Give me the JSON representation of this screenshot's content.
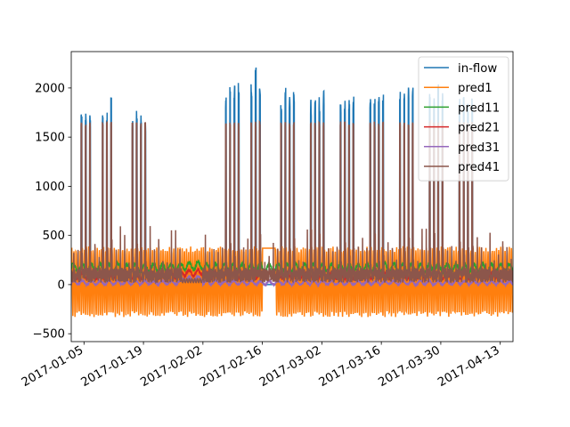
{
  "chart_data": {
    "type": "line",
    "title": "",
    "xlabel": "",
    "ylabel": "",
    "xlim": [
      "2017-01-02",
      "2017-04-16"
    ],
    "ylim": [
      -580,
      2370
    ],
    "x_ticks": [
      "2017-01-05",
      "2017-01-19",
      "2017-02-02",
      "2017-02-16",
      "2017-03-02",
      "2017-03-16",
      "2017-03-30",
      "2017-04-13"
    ],
    "y_ticks": [
      -500,
      0,
      500,
      1000,
      1500,
      2000
    ],
    "grid": false,
    "legend_position": "top-right",
    "x_date_format": "YYYY-MM-DD, rotated labels",
    "series": [
      {
        "name": "in-flow",
        "color": "#1f77b4",
        "line_width": 1.5,
        "description": "daily spikes to ~1700-2250 on business days, 0 otherwise; near-zero from 2017-01-28 to 2017-02-02"
      },
      {
        "name": "pred1",
        "color": "#ff7f0e",
        "line_width": 1.5,
        "description": "oscillates roughly between -330 and 390; flat ~370 from 2017-02-16 to 2017-02-19"
      },
      {
        "name": "pred11",
        "color": "#2ca02c",
        "line_width": 1.5,
        "description": "mostly flat between ~120 and ~250; ~190 around early February"
      },
      {
        "name": "pred21",
        "color": "#d62728",
        "line_width": 1.5,
        "description": "mostly flat between ~50 and ~130"
      },
      {
        "name": "pred31",
        "color": "#9467bd",
        "line_width": 1.5,
        "description": "mostly flat ~0 to ~50"
      },
      {
        "name": "pred41",
        "color": "#8c564b",
        "line_width": 1.5,
        "description": "daily spikes to ~1600-1700 on business days, small bumps to ~600 before weekends"
      }
    ],
    "peaks": {
      "in-flow": [
        [
          "2017-01-04",
          1810
        ],
        [
          "2017-01-05",
          1760
        ],
        [
          "2017-01-06",
          1760
        ],
        [
          "2017-01-09",
          1780
        ],
        [
          "2017-01-10",
          1760
        ],
        [
          "2017-01-11",
          1910
        ],
        [
          "2017-01-16",
          1720
        ],
        [
          "2017-01-17",
          1770
        ],
        [
          "2017-01-18",
          1760
        ],
        [
          "2017-01-19",
          1640
        ],
        [
          "2017-02-07",
          1950
        ],
        [
          "2017-02-08",
          2080
        ],
        [
          "2017-02-09",
          2090
        ],
        [
          "2017-02-10",
          2060
        ],
        [
          "2017-02-13",
          2070
        ],
        [
          "2017-02-14",
          2240
        ],
        [
          "2017-02-15",
          2000
        ],
        [
          "2017-02-20",
          1910
        ],
        [
          "2017-02-21",
          2010
        ],
        [
          "2017-02-22",
          1990
        ],
        [
          "2017-02-23",
          1960
        ],
        [
          "2017-02-27",
          1900
        ],
        [
          "2017-02-28",
          1900
        ],
        [
          "2017-03-01",
          1940
        ],
        [
          "2017-03-02",
          2000
        ],
        [
          "2017-03-06",
          1930
        ],
        [
          "2017-03-07",
          1910
        ],
        [
          "2017-03-08",
          1950
        ],
        [
          "2017-03-09",
          1960
        ],
        [
          "2017-03-13",
          1900
        ],
        [
          "2017-03-14",
          1910
        ],
        [
          "2017-03-15",
          2050
        ],
        [
          "2017-03-16",
          1950
        ],
        [
          "2017-03-20",
          1980
        ],
        [
          "2017-03-21",
          1960
        ],
        [
          "2017-03-22",
          2010
        ],
        [
          "2017-03-23",
          2020
        ],
        [
          "2017-03-27",
          1940
        ],
        [
          "2017-03-28",
          1900
        ],
        [
          "2017-03-29",
          2080
        ],
        [
          "2017-03-30",
          1970
        ],
        [
          "2017-04-03",
          1890
        ],
        [
          "2017-04-04",
          1970
        ],
        [
          "2017-04-05",
          1930
        ],
        [
          "2017-04-06",
          1900
        ]
      ]
    }
  },
  "labels": {
    "legend": [
      "in-flow",
      "pred1",
      "pred11",
      "pred21",
      "pred31",
      "pred41"
    ]
  }
}
